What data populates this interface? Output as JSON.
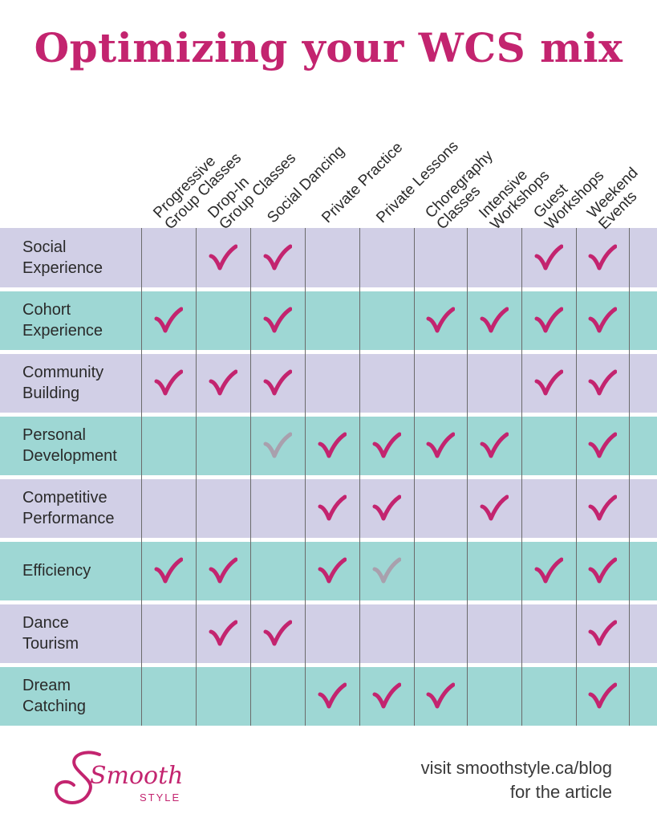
{
  "title": "Optimizing your WCS mix",
  "columns": [
    [
      "Progressive",
      "Group Classes"
    ],
    [
      "Drop-In",
      "Group Classes"
    ],
    [
      "Social Dancing"
    ],
    [
      "Private Practice"
    ],
    [
      "Private Lessons"
    ],
    [
      "Choregraphy",
      "Classes"
    ],
    [
      "Intensive",
      "Workshops"
    ],
    [
      "Guest",
      "Workshops"
    ],
    [
      "Weekend",
      "Events"
    ]
  ],
  "rows": [
    {
      "label": [
        "Social",
        "Experience"
      ],
      "cells": [
        0,
        1,
        1,
        0,
        0,
        0,
        0,
        1,
        1
      ]
    },
    {
      "label": [
        "Cohort",
        "Experience"
      ],
      "cells": [
        1,
        0,
        1,
        0,
        0,
        1,
        1,
        1,
        1
      ]
    },
    {
      "label": [
        "Community",
        "Building"
      ],
      "cells": [
        1,
        1,
        1,
        0,
        0,
        0,
        0,
        1,
        1
      ]
    },
    {
      "label": [
        "Personal",
        "Development"
      ],
      "cells": [
        0,
        0,
        2,
        1,
        1,
        1,
        1,
        0,
        1
      ]
    },
    {
      "label": [
        "Competitive",
        "Performance"
      ],
      "cells": [
        0,
        0,
        0,
        1,
        1,
        0,
        1,
        0,
        1
      ]
    },
    {
      "label": [
        "Efficiency"
      ],
      "cells": [
        1,
        1,
        0,
        1,
        2,
        0,
        0,
        1,
        1
      ]
    },
    {
      "label": [
        "Dance",
        "Tourism"
      ],
      "cells": [
        0,
        1,
        1,
        0,
        0,
        0,
        0,
        0,
        1
      ]
    },
    {
      "label": [
        "Dream",
        "Catching"
      ],
      "cells": [
        0,
        0,
        0,
        1,
        1,
        1,
        0,
        0,
        1
      ]
    }
  ],
  "colors": {
    "title": "#c3246f",
    "check": "#c3246f",
    "check_faded": "#a9a0ad",
    "row_purple": "#d1cfe6",
    "row_teal": "#9ed7d4"
  },
  "logo": {
    "main": "Smooth",
    "sub": "STYLE"
  },
  "footer": {
    "line1": "visit smoothstyle.ca/blog",
    "line2": "for the article"
  }
}
